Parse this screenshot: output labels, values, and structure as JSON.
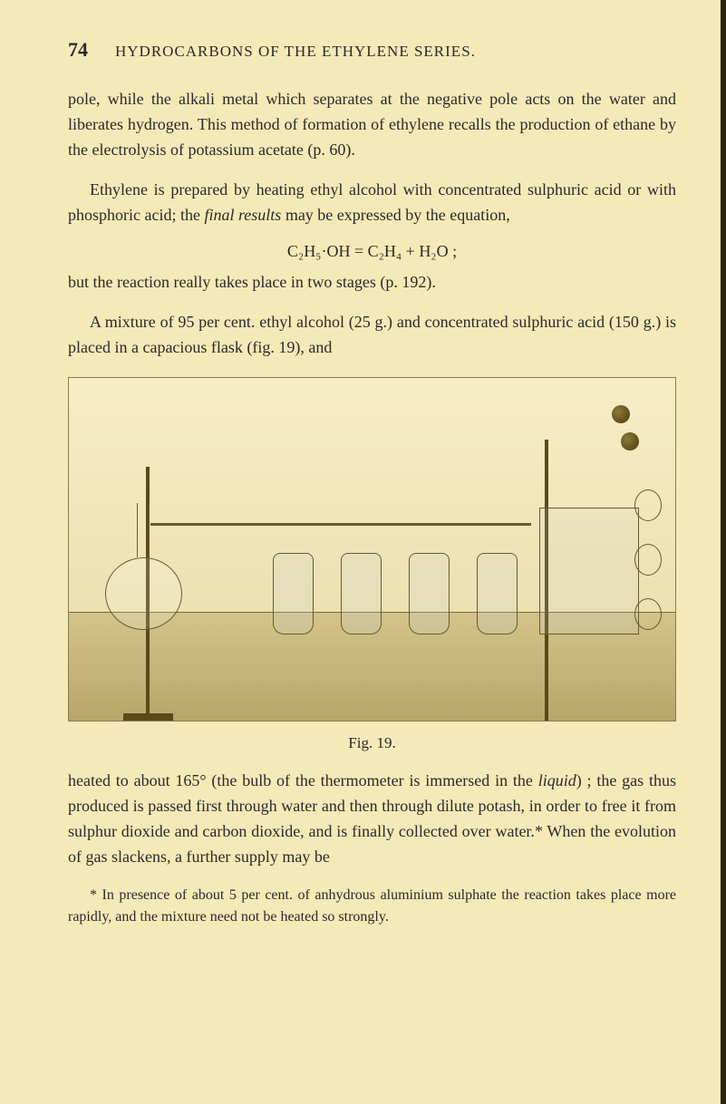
{
  "header": {
    "page_number": "74",
    "chapter_title": "HYDROCARBONS OF THE ETHYLENE SERIES."
  },
  "para1": "pole, while the alkali metal which separates at the negative pole acts on the water and liberates hydrogen. This method of formation of ethylene recalls the production of ethane by the electrolysis of potassium acetate (p. 60).",
  "para2_a": "Ethylene is prepared by heating ethyl alcohol with concentrated sulphuric acid or with phosphoric acid; the ",
  "para2_ital1": "final results",
  "para2_b": " may be expressed by the equation,",
  "formula": "C₂H₅·OH = C₂H₄ + H₂O ;",
  "para3": "but the reaction really takes place in two stages (p. 192).",
  "para4": "A mixture of 95 per cent. ethyl alcohol (25 g.) and concentrated sulphuric acid (150 g.) is placed in a capacious flask (fig. 19), and",
  "figure": {
    "caption": "Fig. 19."
  },
  "para5_a": "heated to about 165° (the bulb of the thermometer is immersed in the ",
  "para5_ital": "liquid",
  "para5_b": ") ; the gas thus produced is passed first through water and then through dilute potash, in order to free it from sulphur dioxide and carbon dioxide, and is finally collected over water.* When the evolution of gas slackens, a further supply may be",
  "footnote": "* In presence of about 5 per cent. of anhydrous aluminium sulphate the reaction takes place more rapidly, and the mixture need not be heated so strongly.",
  "colors": {
    "page_bg": "#f5e9b8",
    "text": "#2a2a2a",
    "fig_border": "#8a7a4a"
  }
}
